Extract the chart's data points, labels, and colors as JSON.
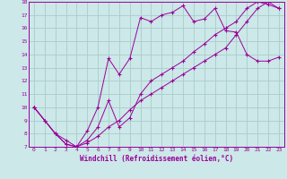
{
  "xlabel": "Windchill (Refroidissement éolien,°C)",
  "xlim": [
    -0.5,
    23.5
  ],
  "ylim": [
    7,
    18
  ],
  "xticks": [
    0,
    1,
    2,
    3,
    4,
    5,
    6,
    7,
    8,
    9,
    10,
    11,
    12,
    13,
    14,
    15,
    16,
    17,
    18,
    19,
    20,
    21,
    22,
    23
  ],
  "yticks": [
    7,
    8,
    9,
    10,
    11,
    12,
    13,
    14,
    15,
    16,
    17,
    18
  ],
  "bg_color": "#cce8e8",
  "line_color": "#990099",
  "grid_color": "#aacccc",
  "line1_x": [
    0,
    1,
    2,
    3,
    4,
    5,
    6,
    7,
    8,
    9,
    10,
    11,
    12,
    13,
    14,
    15,
    16,
    17,
    18,
    19,
    20,
    21,
    22,
    23
  ],
  "line1_y": [
    10.0,
    9.0,
    8.0,
    7.2,
    7.0,
    8.2,
    10.0,
    13.7,
    12.5,
    13.7,
    16.8,
    16.5,
    17.0,
    17.2,
    17.7,
    16.5,
    16.7,
    17.5,
    15.8,
    15.7,
    14.0,
    13.5,
    13.5,
    13.8
  ],
  "line2_x": [
    0,
    1,
    2,
    3,
    4,
    5,
    6,
    7,
    8,
    9,
    10,
    11,
    12,
    13,
    14,
    15,
    16,
    17,
    18,
    19,
    20,
    21,
    22,
    23
  ],
  "line2_y": [
    10.0,
    9.0,
    8.0,
    7.5,
    7.0,
    7.3,
    7.8,
    8.5,
    9.0,
    9.8,
    10.5,
    11.0,
    11.5,
    12.0,
    12.5,
    13.0,
    13.5,
    14.0,
    14.5,
    15.5,
    16.5,
    17.5,
    18.0,
    17.5
  ],
  "line3_x": [
    0,
    2,
    3,
    4,
    5,
    6,
    7,
    8,
    9,
    10,
    11,
    12,
    13,
    14,
    15,
    16,
    17,
    18,
    19,
    20,
    21,
    22,
    23
  ],
  "line3_y": [
    10.0,
    8.0,
    7.2,
    7.0,
    7.5,
    8.5,
    10.5,
    8.5,
    9.2,
    11.0,
    12.0,
    12.5,
    13.0,
    13.5,
    14.2,
    14.8,
    15.5,
    16.0,
    16.5,
    17.5,
    18.0,
    17.8,
    17.5
  ]
}
